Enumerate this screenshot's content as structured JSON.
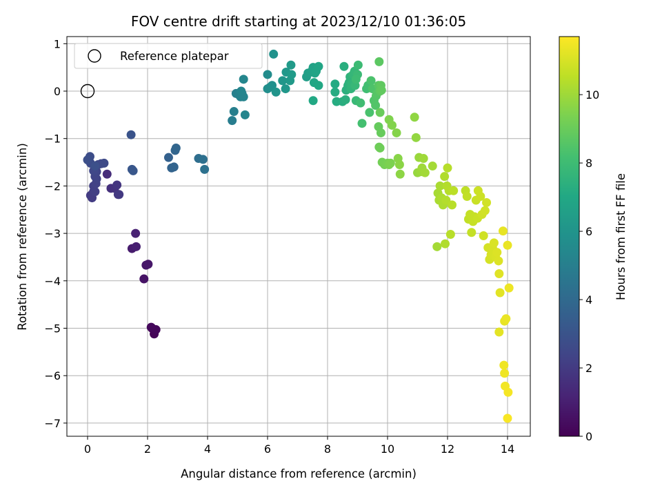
{
  "chart_data": {
    "type": "scatter",
    "title": "FOV centre drift starting at 2023/12/10 01:36:05",
    "xlabel": "Angular distance from reference (arcmin)",
    "ylabel": "Rotation from reference (arcmin)",
    "xlim": [
      -0.7,
      14.8
    ],
    "ylim": [
      -7.3,
      1.17
    ],
    "xticks": [
      0,
      2,
      4,
      6,
      8,
      10,
      12,
      14
    ],
    "yticks": [
      1,
      0,
      -1,
      -2,
      -3,
      -4,
      -5,
      -6,
      -7
    ],
    "grid": true,
    "legend": {
      "placement": "top-left",
      "entries": [
        "Reference platepar"
      ]
    },
    "reference_point": {
      "x": 0,
      "y": 0
    },
    "colorbar": {
      "label": "Hours from first FF file",
      "range": [
        0,
        11.7
      ],
      "ticks": [
        0,
        2,
        4,
        6,
        8,
        10
      ],
      "colormap": "viridis"
    },
    "series": [
      {
        "color_by": "hours",
        "points": [
          [
            2.15,
            -5.0,
            0.1
          ],
          [
            2.22,
            -5.12,
            0.15
          ],
          [
            2.28,
            -5.03,
            0.2
          ],
          [
            2.12,
            -4.98,
            0.25
          ],
          [
            1.88,
            -3.96,
            0.6
          ],
          [
            1.95,
            -3.67,
            0.7
          ],
          [
            2.02,
            -3.65,
            0.75
          ],
          [
            1.48,
            -3.32,
            0.9
          ],
          [
            1.62,
            -3.28,
            1.0
          ],
          [
            1.6,
            -3.0,
            1.1
          ],
          [
            0.65,
            -1.75,
            1.5
          ],
          [
            0.78,
            -2.05,
            1.6
          ],
          [
            0.9,
            -2.05,
            1.7
          ],
          [
            0.98,
            -1.98,
            1.8
          ],
          [
            1.02,
            -2.18,
            1.9
          ],
          [
            1.05,
            -2.18,
            1.95
          ],
          [
            0.1,
            -2.2,
            2.0
          ],
          [
            0.15,
            -2.25,
            2.05
          ],
          [
            0.2,
            -2.12,
            2.1
          ],
          [
            0.25,
            -2.12,
            2.15
          ],
          [
            0.2,
            -2.0,
            2.2
          ],
          [
            0.28,
            -1.95,
            2.25
          ],
          [
            0.3,
            -1.85,
            2.3
          ],
          [
            0.25,
            -1.8,
            2.35
          ],
          [
            0.3,
            -1.7,
            2.4
          ],
          [
            0.2,
            -1.68,
            2.45
          ],
          [
            0.35,
            -1.55,
            2.5
          ],
          [
            0.45,
            -1.53,
            2.55
          ],
          [
            0.55,
            -1.52,
            2.6
          ],
          [
            0.1,
            -1.52,
            2.65
          ],
          [
            0.05,
            -1.42,
            2.7
          ],
          [
            0.08,
            -1.38,
            2.75
          ],
          [
            0.0,
            -1.45,
            2.8
          ],
          [
            0.25,
            -1.58,
            2.85
          ],
          [
            1.45,
            -0.92,
            3.0
          ],
          [
            1.48,
            -1.65,
            3.1
          ],
          [
            1.52,
            -1.68,
            3.15
          ],
          [
            2.7,
            -1.4,
            3.6
          ],
          [
            2.8,
            -1.62,
            3.7
          ],
          [
            2.88,
            -1.6,
            3.75
          ],
          [
            2.92,
            -1.25,
            3.8
          ],
          [
            2.95,
            -1.2,
            3.85
          ],
          [
            3.7,
            -1.42,
            4.2
          ],
          [
            3.85,
            -1.44,
            4.3
          ],
          [
            3.9,
            -1.65,
            4.35
          ],
          [
            4.82,
            -0.62,
            4.9
          ],
          [
            4.88,
            -0.43,
            5.0
          ],
          [
            4.95,
            -0.05,
            5.05
          ],
          [
            5.05,
            -0.08,
            5.1
          ],
          [
            5.1,
            -0.12,
            5.15
          ],
          [
            5.15,
            -0.05,
            5.2
          ],
          [
            5.2,
            -0.12,
            5.25
          ],
          [
            5.12,
            -0.0,
            5.3
          ],
          [
            5.25,
            -0.5,
            5.3
          ],
          [
            5.2,
            0.25,
            5.35
          ],
          [
            6.0,
            0.35,
            5.6
          ],
          [
            6.0,
            0.05,
            5.7
          ],
          [
            6.08,
            0.08,
            5.75
          ],
          [
            6.15,
            0.12,
            5.8
          ],
          [
            6.2,
            0.78,
            5.9
          ],
          [
            6.28,
            -0.02,
            6.0
          ],
          [
            6.5,
            0.22,
            6.1
          ],
          [
            6.6,
            0.05,
            6.15
          ],
          [
            6.62,
            0.4,
            6.2
          ],
          [
            6.75,
            0.22,
            6.25
          ],
          [
            6.78,
            0.55,
            6.3
          ],
          [
            6.8,
            0.35,
            6.35
          ],
          [
            7.3,
            0.3,
            6.5
          ],
          [
            7.35,
            0.38,
            6.55
          ],
          [
            7.45,
            0.4,
            6.6
          ],
          [
            7.5,
            0.45,
            6.65
          ],
          [
            7.52,
            0.5,
            6.7
          ],
          [
            7.58,
            0.38,
            6.75
          ],
          [
            7.62,
            0.42,
            6.8
          ],
          [
            7.7,
            0.52,
            6.85
          ],
          [
            7.55,
            0.18,
            6.9
          ],
          [
            7.7,
            0.12,
            6.95
          ],
          [
            7.52,
            -0.2,
            7.0
          ],
          [
            8.25,
            0.15,
            7.1
          ],
          [
            8.25,
            -0.02,
            7.15
          ],
          [
            8.3,
            -0.22,
            7.2
          ],
          [
            8.5,
            -0.22,
            7.25
          ],
          [
            8.55,
            0.52,
            7.3
          ],
          [
            8.6,
            -0.18,
            7.35
          ],
          [
            8.62,
            0.02,
            7.4
          ],
          [
            8.68,
            0.12,
            7.45
          ],
          [
            8.72,
            0.18,
            7.5
          ],
          [
            8.75,
            0.3,
            7.55
          ],
          [
            8.78,
            0.05,
            7.6
          ],
          [
            8.8,
            0.15,
            7.65
          ],
          [
            8.85,
            0.35,
            7.7
          ],
          [
            8.9,
            0.42,
            7.75
          ],
          [
            8.92,
            0.12,
            7.8
          ],
          [
            8.95,
            -0.2,
            7.85
          ],
          [
            9.0,
            0.35,
            7.9
          ],
          [
            9.02,
            0.55,
            7.95
          ],
          [
            8.95,
            0.25,
            8.0
          ],
          [
            9.1,
            -0.25,
            8.05
          ],
          [
            9.3,
            0.05,
            8.1
          ],
          [
            9.35,
            0.12,
            8.15
          ],
          [
            9.15,
            -0.68,
            8.2
          ],
          [
            9.4,
            -0.45,
            8.3
          ],
          [
            9.45,
            0.22,
            8.35
          ],
          [
            9.5,
            0.05,
            8.4
          ],
          [
            9.55,
            -0.2,
            8.45
          ],
          [
            9.6,
            -0.3,
            8.5
          ],
          [
            9.62,
            -0.1,
            8.55
          ],
          [
            9.65,
            -0.05,
            8.6
          ],
          [
            9.7,
            0.12,
            8.65
          ],
          [
            9.72,
            0.62,
            8.7
          ],
          [
            9.75,
            0.0,
            8.75
          ],
          [
            9.78,
            0.12,
            8.8
          ],
          [
            9.8,
            0.02,
            8.85
          ],
          [
            9.7,
            -0.75,
            8.9
          ],
          [
            9.78,
            -0.88,
            8.95
          ],
          [
            9.75,
            -0.45,
            9.0
          ],
          [
            9.72,
            -1.18,
            9.05
          ],
          [
            9.75,
            -1.2,
            9.1
          ],
          [
            9.82,
            -1.5,
            9.2
          ],
          [
            9.9,
            -1.55,
            9.25
          ],
          [
            10.0,
            -1.52,
            9.3
          ],
          [
            10.05,
            -1.55,
            9.35
          ],
          [
            10.1,
            -1.52,
            9.4
          ],
          [
            10.05,
            -0.6,
            9.45
          ],
          [
            10.15,
            -0.72,
            9.5
          ],
          [
            10.3,
            -0.88,
            9.55
          ],
          [
            10.35,
            -1.42,
            9.6
          ],
          [
            10.4,
            -1.55,
            9.65
          ],
          [
            10.42,
            -1.75,
            9.7
          ],
          [
            10.9,
            -0.55,
            9.75
          ],
          [
            10.95,
            -0.98,
            9.8
          ],
          [
            11.0,
            -1.72,
            9.85
          ],
          [
            11.05,
            -1.4,
            9.9
          ],
          [
            11.1,
            -1.7,
            9.95
          ],
          [
            11.15,
            -1.62,
            10.0
          ],
          [
            11.2,
            -1.42,
            10.0
          ],
          [
            11.25,
            -1.72,
            10.05
          ],
          [
            11.5,
            -1.58,
            10.1
          ],
          [
            11.65,
            -3.28,
            10.1
          ],
          [
            11.68,
            -2.15,
            10.15
          ],
          [
            11.72,
            -2.3,
            10.2
          ],
          [
            11.75,
            -2.0,
            10.2
          ],
          [
            11.8,
            -2.25,
            10.25
          ],
          [
            11.85,
            -2.4,
            10.25
          ],
          [
            11.9,
            -1.8,
            10.3
          ],
          [
            11.92,
            -3.22,
            10.3
          ],
          [
            11.95,
            -2.3,
            10.35
          ],
          [
            11.98,
            -2.0,
            10.35
          ],
          [
            12.0,
            -1.62,
            10.4
          ],
          [
            12.05,
            -2.1,
            10.4
          ],
          [
            12.1,
            -3.02,
            10.45
          ],
          [
            12.15,
            -2.4,
            10.45
          ],
          [
            12.2,
            -2.1,
            10.5
          ],
          [
            12.6,
            -2.1,
            10.55
          ],
          [
            12.65,
            -2.22,
            10.6
          ],
          [
            12.7,
            -2.7,
            10.6
          ],
          [
            12.75,
            -2.6,
            10.65
          ],
          [
            12.8,
            -2.98,
            10.65
          ],
          [
            12.85,
            -2.75,
            10.7
          ],
          [
            12.9,
            -2.65,
            10.7
          ],
          [
            12.95,
            -2.3,
            10.75
          ],
          [
            13.0,
            -2.68,
            10.75
          ],
          [
            13.02,
            -2.1,
            10.8
          ],
          [
            13.1,
            -2.22,
            10.8
          ],
          [
            13.15,
            -2.6,
            10.85
          ],
          [
            13.2,
            -3.05,
            10.85
          ],
          [
            13.25,
            -2.52,
            10.9
          ],
          [
            13.3,
            -2.35,
            10.9
          ],
          [
            13.35,
            -3.3,
            10.95
          ],
          [
            13.4,
            -3.55,
            10.95
          ],
          [
            13.45,
            -3.45,
            11.0
          ],
          [
            13.5,
            -3.3,
            11.0
          ],
          [
            13.55,
            -3.2,
            11.05
          ],
          [
            13.6,
            -3.5,
            11.05
          ],
          [
            13.65,
            -3.4,
            11.1
          ],
          [
            13.7,
            -3.58,
            11.1
          ],
          [
            13.72,
            -3.85,
            11.15
          ],
          [
            13.75,
            -4.25,
            11.2
          ],
          [
            13.72,
            -5.08,
            11.25
          ],
          [
            13.85,
            -2.95,
            11.3
          ],
          [
            13.9,
            -4.85,
            11.3
          ],
          [
            13.95,
            -4.8,
            11.35
          ],
          [
            14.0,
            -3.25,
            11.35
          ],
          [
            14.05,
            -4.15,
            11.4
          ],
          [
            13.88,
            -5.78,
            11.45
          ],
          [
            13.9,
            -5.95,
            11.45
          ],
          [
            13.92,
            -6.22,
            11.5
          ],
          [
            14.02,
            -6.35,
            11.55
          ],
          [
            14.0,
            -6.9,
            11.6
          ]
        ]
      }
    ]
  }
}
